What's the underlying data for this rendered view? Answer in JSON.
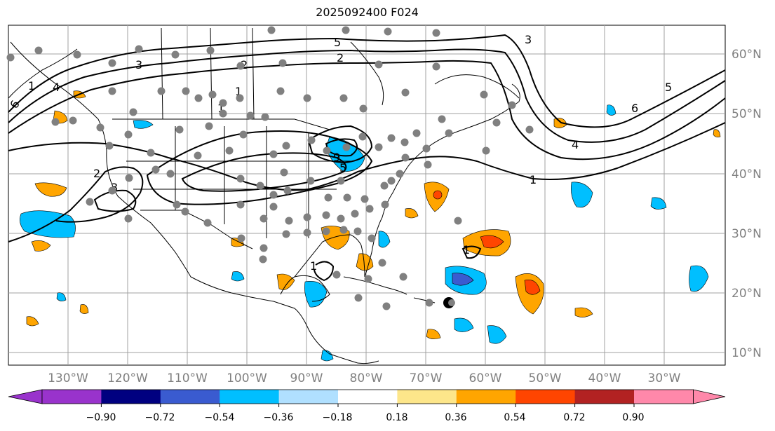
{
  "title": "2025092400 F024",
  "lat_ticks": [
    "60°N",
    "50°N",
    "40°N",
    "30°N",
    "20°N",
    "10°N"
  ],
  "lon_ticks": [
    "130°W",
    "120°W",
    "110°W",
    "100°W",
    "90°W",
    "80°W",
    "70°W",
    "60°W",
    "50°W",
    "40°W",
    "30°W"
  ],
  "colorbar": {
    "tick_labels": [
      "−0.90",
      "−0.72",
      "−0.54",
      "−0.36",
      "−0.18",
      "0.18",
      "0.36",
      "0.54",
      "0.72",
      "0.90"
    ],
    "colors": [
      "#9933cc",
      "#000080",
      "#3a5bd0",
      "#00bfff",
      "#b0e0ff",
      "#ffffff",
      "#fde68a",
      "#ffa500",
      "#ff4500",
      "#b22222",
      "#ff88aa"
    ]
  },
  "contour_labels": [
    "6",
    "5",
    "4",
    "3",
    "2",
    "1",
    "2",
    "3",
    "1",
    "1",
    "4",
    "5",
    "6",
    "3",
    "2",
    "1",
    "9",
    "5",
    "1",
    "1"
  ],
  "colors": {
    "positive": "#ffa500",
    "strong_positive": "#ff4500",
    "negative": "#00bfff",
    "strong_negative": "#3a5bd0",
    "station": "#808080"
  }
}
